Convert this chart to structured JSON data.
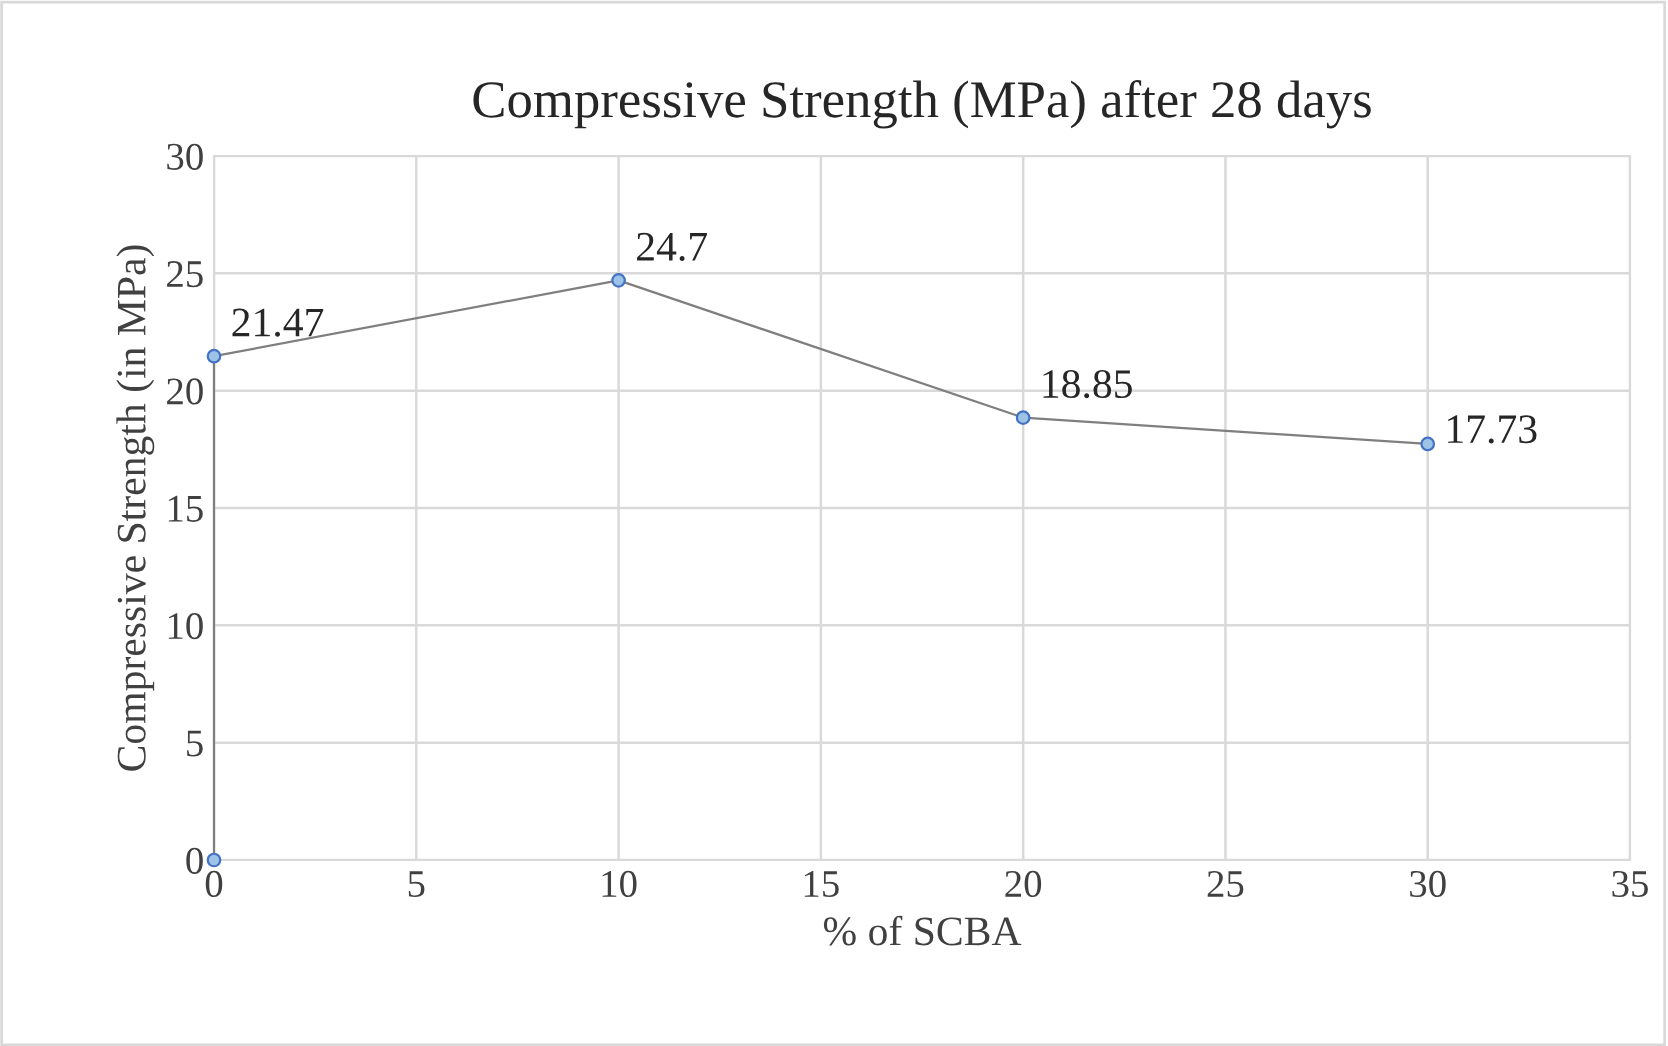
{
  "chart_data": {
    "type": "line",
    "title": "Compressive Strength (MPa) after 28 days",
    "xlabel": "% of SCBA",
    "ylabel": "Compressive Strength (in MPa)",
    "x": [
      0,
      0,
      10,
      20,
      30
    ],
    "series": [
      {
        "color": "#7f7f7f",
        "values": [
          0,
          21.47,
          24.7,
          18.85,
          17.73
        ],
        "value_labels": [
          null,
          "21.47",
          "24.7",
          "18.85",
          "17.73"
        ]
      }
    ],
    "xlim": [
      0,
      35
    ],
    "ylim": [
      0,
      30
    ],
    "xticks": [
      0,
      5,
      10,
      15,
      20,
      25,
      30,
      35
    ],
    "yticks": [
      0,
      5,
      10,
      15,
      20,
      25,
      30
    ],
    "grid": true,
    "marker": "circle",
    "line_style": "solid",
    "legend": false
  }
}
